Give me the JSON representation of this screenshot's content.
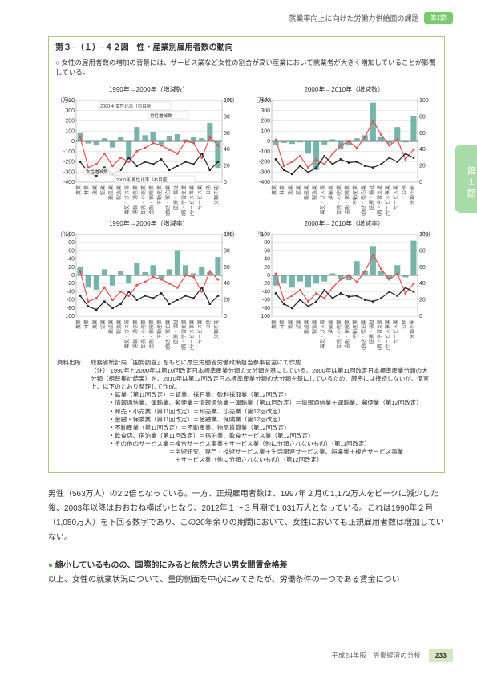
{
  "header": {
    "text": "就業率向上に向けた労働力供給面の課題",
    "tab": "第1節"
  },
  "side_tab": "第１節",
  "figure": {
    "title": "第３−（１）−４２図　性・産業別雇用者数の動向",
    "note": "女性の雇用者数の増加の背景には、サービス業など女性の割合が高い産業において就業者が大きく増加していることが影響している。",
    "charts": [
      {
        "title": "1990年→2000年（増減数）",
        "y_unit_left": "（万人）",
        "y_unit_right": "（％）",
        "ylim": [
          -400,
          400
        ],
        "ytick_step": 100,
        "right_ylim": [
          0,
          100
        ],
        "right_tick_step": 20,
        "type": "bar_line",
        "bars": [
          80,
          -20,
          -40,
          30,
          -60,
          40,
          -180,
          140,
          60,
          90,
          -30,
          50,
          70,
          20,
          40,
          30,
          180,
          -260
        ],
        "line1": [
          55,
          18,
          22,
          35,
          20,
          30,
          25,
          38,
          42,
          48,
          45,
          40,
          35,
          50,
          48,
          30,
          55,
          45
        ],
        "line2": [
          25,
          12,
          8,
          18,
          10,
          15,
          30,
          20,
          25,
          22,
          28,
          15,
          20,
          25,
          22,
          35,
          15,
          25
        ],
        "categories": [
          "農業",
          "林業",
          "漁業",
          "鉱業",
          "建設業",
          "製造業",
          "電気・ガス等",
          "運輸・通信業",
          "卸売・小売業",
          "金融・保険業",
          "不動産業",
          "飲食店・宿泊業",
          "医療・福祉",
          "教育・学習支援",
          "複合サービス事業",
          "サービス業",
          "公務",
          "分類不能"
        ],
        "bar_color": "#5fa89e",
        "line1_color": "#e85050",
        "line2_color": "#222222",
        "grid_color": "#cccccc",
        "bg": "#ffffff",
        "legend": [
          "2000年 女性比率（右目盛）",
          "男性増減数",
          "女性増減数",
          "2000年 男性比率（右目盛）"
        ]
      },
      {
        "title": "2000年→2010年（増減数）",
        "y_unit_left": "（万人）",
        "y_unit_right": "",
        "ylim": [
          -400,
          400
        ],
        "ytick_step": 100,
        "right_ylim": [
          0,
          100
        ],
        "right_tick_step": 20,
        "type": "bar_line",
        "bars": [
          -40,
          -15,
          -25,
          -10,
          -120,
          -280,
          -30,
          20,
          -80,
          -40,
          30,
          60,
          380,
          40,
          -20,
          140,
          -10,
          250
        ],
        "line1": [
          52,
          20,
          25,
          32,
          18,
          28,
          22,
          35,
          45,
          50,
          42,
          55,
          75,
          58,
          45,
          52,
          28,
          40
        ],
        "line2": [
          28,
          15,
          10,
          20,
          12,
          18,
          32,
          22,
          28,
          24,
          25,
          20,
          18,
          22,
          30,
          25,
          35,
          30
        ],
        "categories": [
          "農業",
          "林業",
          "漁業",
          "鉱業",
          "建設業",
          "製造業",
          "電気・ガス等",
          "運輸業",
          "卸売・小売業",
          "金融・保険業",
          "不動産業",
          "飲食店・宿泊業",
          "医療・福祉",
          "教育・学習支援",
          "複合サービス事業",
          "サービス業",
          "公務",
          "分類不能"
        ],
        "bar_color": "#5fa89e",
        "line1_color": "#e85050",
        "line2_color": "#222222",
        "grid_color": "#cccccc",
        "bg": "#ffffff"
      },
      {
        "title": "1990年→2000年（増減率）",
        "y_unit_left": "（％）",
        "y_unit_right": "（％）",
        "ylim": [
          -100,
          100
        ],
        "ytick_step": 20,
        "right_ylim": [
          0,
          100
        ],
        "right_tick_step": 20,
        "type": "bar_line",
        "bars": [
          20,
          -30,
          -35,
          15,
          -25,
          10,
          -20,
          30,
          8,
          25,
          -10,
          15,
          60,
          25,
          5,
          20,
          8,
          45
        ],
        "line1": [
          55,
          18,
          22,
          35,
          20,
          30,
          25,
          38,
          42,
          48,
          45,
          40,
          35,
          50,
          48,
          30,
          55,
          45
        ],
        "line2": [
          25,
          12,
          8,
          18,
          10,
          15,
          30,
          20,
          25,
          22,
          28,
          15,
          20,
          25,
          22,
          35,
          15,
          25
        ],
        "categories": [
          "農業",
          "林業",
          "漁業",
          "鉱業",
          "建設業",
          "製造業",
          "電気・ガス等",
          "運輸・通信業",
          "卸売・小売業",
          "金融・保険業",
          "不動産業",
          "飲食店・宿泊業",
          "医療・福祉",
          "教育・学習支援",
          "複合サービス事業",
          "サービス業",
          "公務",
          "分類不能"
        ],
        "bar_color": "#5fa89e",
        "line1_color": "#e85050",
        "line2_color": "#222222",
        "grid_color": "#cccccc",
        "bg": "#ffffff"
      },
      {
        "title": "2000年→2010年（増減率）",
        "y_unit_left": "（％）",
        "y_unit_right": "（％）",
        "ylim": [
          -100,
          100
        ],
        "ytick_step": 20,
        "right_ylim": [
          0,
          100
        ],
        "right_tick_step": 20,
        "type": "bar_line",
        "bars": [
          -25,
          -20,
          -30,
          -15,
          -30,
          -20,
          -15,
          5,
          -10,
          -12,
          35,
          10,
          70,
          12,
          -8,
          25,
          -5,
          85
        ],
        "line1": [
          52,
          20,
          25,
          32,
          18,
          28,
          22,
          35,
          45,
          50,
          42,
          55,
          75,
          58,
          45,
          52,
          28,
          40
        ],
        "line2": [
          28,
          15,
          10,
          20,
          12,
          18,
          32,
          22,
          28,
          24,
          25,
          20,
          18,
          22,
          30,
          25,
          35,
          30
        ],
        "categories": [
          "農業",
          "林業",
          "漁業",
          "鉱業",
          "建設業",
          "製造業",
          "電気・ガス等",
          "運輸業",
          "卸売・小売業",
          "金融・保険業",
          "不動産業",
          "飲食店・宿泊業",
          "医療・福祉",
          "教育・学習支援",
          "複合サービス事業",
          "サービス業",
          "公務",
          "分類不能"
        ],
        "bar_color": "#5fa89e",
        "line1_color": "#e85050",
        "line2_color": "#222222",
        "grid_color": "#cccccc",
        "bg": "#ffffff"
      }
    ],
    "citation": {
      "source_label": "資料出所",
      "note_label": "（注）",
      "body": "総務省統計局「国勢調査」をもとに厚生労働省労働政策担当参事官室にて作成\n1990年と2000年は第10回改定日本標準産業分類の大分類を基にしている。2000年は第11回改定日本標準産業分類の大分類（組替集計結果）を、2010年は第12回改定日本標準産業分類の大分類を基にしているため、厳密には接続しないが、便宜上、以下のとおり整理して作成。\n・鉱業（第11回改定）＝鉱業、採石業、砂利採取業（第12回改定）\n・情報通信業、運輸業、郵便業＝情報通信業＋運輸業（第11回改定）＝情報通信業＋運輸業、郵便業（第12回改定）\n・卸売・小売業（第11回改定）＝卸売業、小売業（第12回改定）\n・金融・保険業（第11回改定）＝金融業、保険業（第12回改定）\n・不動産業（第11回改定）＝不動産業、物品賃貸業（第12回改定）\n・飲食店、宿泊業（第11回改定）＝宿泊業、飲食サービス業（第12回改定）\n・その他のサービス業＝複合サービス事業＋サービス業（他に分類されないもの）（第11回改定）\n　　　　　　　　　　＝学術研究、専門・技術サービス業＋生活関連サービス業、娯楽業＋複合サービス事業\n　　　　　　　　　　　＋サービス業（他に分類されないもの）（第12回改定）"
    }
  },
  "body": {
    "p1": "男性（563万人）の2.2倍となっている。一方、正規雇用者数は、1997年２月の1,172万人をピークに減少した後、2003年以降はおおむね横ばいとなり、2012年１～３月期で1,031万人となっている。これは1990年２月（1,050万人）を下回る数字であり、この20年余りの期間において、女性においても正規雇用者数は増加していない。",
    "subheading": "縮小しているものの、国際的にみると依然大きい男女間賃金格差",
    "p2": "以上、女性の就業状況について、量的側面を中心にみてきたが、労働条件の一つである賃金につい"
  },
  "footer": {
    "text": "平成24年版　労働経済の分析",
    "page": "233"
  }
}
